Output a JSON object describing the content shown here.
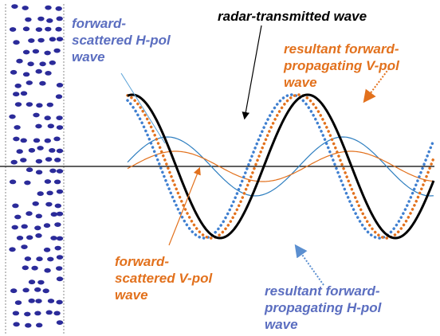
{
  "labels": {
    "forward_scattered_h": "forward-\nscattered H-pol\nwave",
    "radar_transmitted": "radar-transmitted wave",
    "resultant_v": "resultant forward-\npropagating V-pol\nwave",
    "forward_scattered_v": "forward-\nscattered V-pol\nwave",
    "resultant_h": "resultant forward-\npropagating H-pol\nwave"
  },
  "colors": {
    "transmitted": "#000000",
    "h_pol": "#3f7fd0",
    "h_pol_scattered": "#2f7fc0",
    "v_pol": "#e2711d",
    "particles": "#2b2b9a",
    "axis": "#000000",
    "slab_border": "#888888",
    "blue_label": "#5b6ec0",
    "orange_label": "#e2711d"
  }
}
